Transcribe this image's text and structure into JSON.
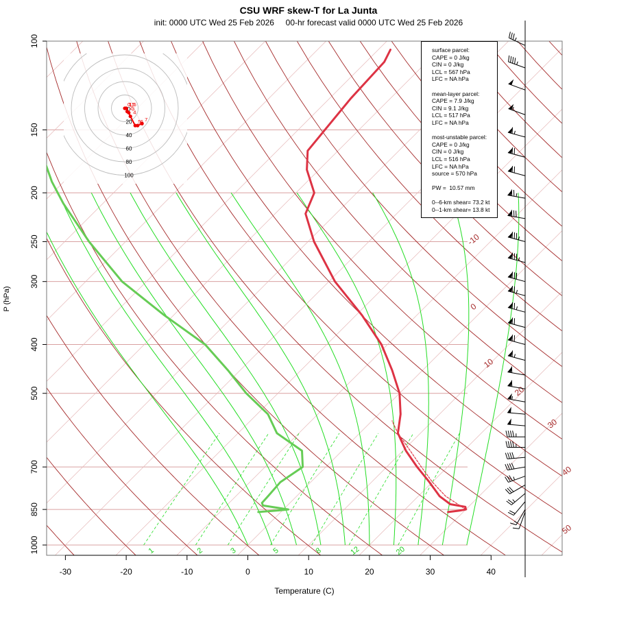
{
  "title": "CSU WRF skew-T for La Junta",
  "subtitle": "init: 0000 UTC Wed 25 Feb 2026     00-hr forecast valid 0000 UTC Wed 25 Feb 2026",
  "axes": {
    "xlabel": "Temperature (C)",
    "ylabel": "P (hPa)",
    "x_ticks": [
      -30,
      -20,
      -10,
      0,
      10,
      20,
      30,
      40
    ],
    "p_ticks": [
      100,
      150,
      200,
      250,
      300,
      400,
      500,
      700,
      850,
      1000
    ],
    "xlim": [
      -33,
      46
    ],
    "plim": [
      1000,
      100
    ],
    "dry_adiabat_labels": [
      {
        "value": "-10",
        "p": 250
      },
      {
        "value": "0",
        "p": 340
      },
      {
        "value": "10",
        "p": 440
      },
      {
        "value": "20",
        "p": 500
      },
      {
        "value": "30",
        "p": 580
      },
      {
        "value": "40",
        "p": 720
      },
      {
        "value": "50",
        "p": 940
      }
    ],
    "mixing_ratio_labels": [
      {
        "value": "1",
        "t": -16
      },
      {
        "value": "2",
        "t": -8
      },
      {
        "value": "3",
        "t": -2.5
      },
      {
        "value": "5",
        "t": 4.5
      },
      {
        "value": "8",
        "t": 11.5
      },
      {
        "value": "12",
        "t": 17.5
      },
      {
        "value": "20",
        "t": 25
      }
    ]
  },
  "info_box": {
    "surface": [
      "surface parcel:",
      "CAPE = 0 J/kg",
      "CIN = 0 J/kg",
      "LCL = 567 hPa",
      "LFC = NA hPa"
    ],
    "mean_layer": [
      "mean-layer parcel:",
      "CAPE = 7.9 J/kg",
      "CIN = 9.1 J/kg",
      "LCL = 517 hPa",
      "LFC = NA hPa"
    ],
    "most_unstable": [
      "most-unstable parcel:",
      "CAPE = 0 J/kg",
      "CIN = 0 J/kg",
      "LCL = 516 hPa",
      "LFC = NA hPa",
      "source = 570 hPa"
    ],
    "pw": [
      "PW =  10.57 mm"
    ],
    "shear": [
      "0--6-km shear= 73.2 kt",
      "0--1-km shear= 13.8 kt"
    ]
  },
  "hodograph": {
    "ring_labels": [
      "0",
      "20",
      "40",
      "60",
      "80",
      "100"
    ],
    "points": [
      {
        "u": 0,
        "v": 0,
        "label": "0.5"
      },
      {
        "u": 2,
        "v": 0,
        "label": "1"
      },
      {
        "u": 4,
        "v": 0,
        "label": "1.5"
      },
      {
        "u": 6,
        "v": -8,
        "label": "2"
      },
      {
        "u": 10,
        "v": -11,
        "label": "3"
      },
      {
        "u": 14,
        "v": -20,
        "label": "4"
      },
      {
        "u": 26,
        "v": -43,
        "label": "5"
      },
      {
        "u": 32,
        "v": -43,
        "label": "6"
      },
      {
        "u": 43,
        "v": -38,
        "label": "7"
      }
    ]
  },
  "chart_data": {
    "type": "line",
    "title": "CSU WRF skew-T for La Junta",
    "xlabel": "Temperature (C)",
    "ylabel": "P (hPa)",
    "series": [
      {
        "name": "temperature",
        "color": "#dd3344",
        "points": [
          [
            860,
            27.5
          ],
          [
            855,
            29
          ],
          [
            850,
            30
          ],
          [
            840,
            29.5
          ],
          [
            830,
            26.6
          ],
          [
            800,
            23.5
          ],
          [
            750,
            19.5
          ],
          [
            700,
            15
          ],
          [
            650,
            10.5
          ],
          [
            600,
            6.3
          ],
          [
            550,
            3.6
          ],
          [
            500,
            0
          ],
          [
            450,
            -5
          ],
          [
            400,
            -11
          ],
          [
            350,
            -19
          ],
          [
            300,
            -29
          ],
          [
            250,
            -39
          ],
          [
            220,
            -45
          ],
          [
            200,
            -47
          ],
          [
            180,
            -52
          ],
          [
            165,
            -55
          ],
          [
            150,
            -55.6
          ],
          [
            130,
            -56.5
          ],
          [
            110,
            -57
          ],
          [
            104,
            -58
          ]
        ]
      },
      {
        "name": "parcel",
        "color": "#dd3344",
        "points": [
          [
            850,
            30
          ],
          [
            800,
            24.5
          ],
          [
            750,
            20
          ],
          [
            700,
            15.7
          ],
          [
            650,
            11.2
          ],
          [
            600,
            6.3
          ],
          [
            567,
            3.3
          ]
        ]
      },
      {
        "name": "dewpoint",
        "color": "#66cc55",
        "points": [
          [
            860,
            -3.7
          ],
          [
            853,
            -0.3
          ],
          [
            850,
            0.8
          ],
          [
            835,
            -4
          ],
          [
            825,
            -4.6
          ],
          [
            800,
            -4.7
          ],
          [
            750,
            -5
          ],
          [
            700,
            -3.8
          ],
          [
            650,
            -6.6
          ],
          [
            600,
            -13.6
          ],
          [
            550,
            -18.2
          ],
          [
            500,
            -25.2
          ],
          [
            450,
            -32
          ],
          [
            400,
            -40
          ],
          [
            350,
            -51.5
          ],
          [
            300,
            -64
          ],
          [
            250,
            -76
          ],
          [
            210,
            -86.5
          ],
          [
            190,
            -92
          ],
          [
            175,
            -96
          ]
        ]
      }
    ],
    "wind_barbs": [
      {
        "p": 860,
        "dir": 200,
        "spd": 10
      },
      {
        "p": 850,
        "dir": 210,
        "spd": 15
      },
      {
        "p": 820,
        "dir": 220,
        "spd": 20
      },
      {
        "p": 790,
        "dir": 230,
        "spd": 25
      },
      {
        "p": 760,
        "dir": 240,
        "spd": 30
      },
      {
        "p": 730,
        "dir": 250,
        "spd": 35
      },
      {
        "p": 700,
        "dir": 260,
        "spd": 40
      },
      {
        "p": 670,
        "dir": 265,
        "spd": 40
      },
      {
        "p": 640,
        "dir": 270,
        "spd": 45
      },
      {
        "p": 610,
        "dir": 270,
        "spd": 45
      },
      {
        "p": 580,
        "dir": 275,
        "spd": 50
      },
      {
        "p": 550,
        "dir": 275,
        "spd": 50
      },
      {
        "p": 520,
        "dir": 280,
        "spd": 55
      },
      {
        "p": 490,
        "dir": 280,
        "spd": 60
      },
      {
        "p": 460,
        "dir": 280,
        "spd": 60
      },
      {
        "p": 430,
        "dir": 285,
        "spd": 65
      },
      {
        "p": 400,
        "dir": 285,
        "spd": 70
      },
      {
        "p": 370,
        "dir": 285,
        "spd": 70
      },
      {
        "p": 345,
        "dir": 285,
        "spd": 75
      },
      {
        "p": 320,
        "dir": 285,
        "spd": 75
      },
      {
        "p": 300,
        "dir": 285,
        "spd": 80
      },
      {
        "p": 275,
        "dir": 285,
        "spd": 85
      },
      {
        "p": 250,
        "dir": 285,
        "spd": 85
      },
      {
        "p": 225,
        "dir": 280,
        "spd": 80
      },
      {
        "p": 205,
        "dir": 280,
        "spd": 75
      },
      {
        "p": 185,
        "dir": 285,
        "spd": 70
      },
      {
        "p": 170,
        "dir": 285,
        "spd": 70
      },
      {
        "p": 155,
        "dir": 285,
        "spd": 65
      },
      {
        "p": 140,
        "dir": 290,
        "spd": 55
      },
      {
        "p": 125,
        "dir": 290,
        "spd": 50
      },
      {
        "p": 113,
        "dir": 290,
        "spd": 45
      },
      {
        "p": 102,
        "dir": 295,
        "spd": 35
      }
    ]
  }
}
